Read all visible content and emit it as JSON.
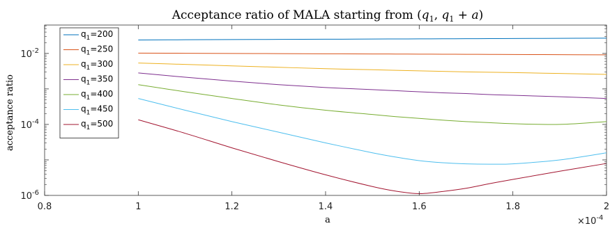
{
  "chart_data": {
    "type": "line",
    "title": "Acceptance ratio of MALA starting from (q₁, q₁ + a)",
    "xlabel": "a",
    "ylabel": "acceptance ratio",
    "x_multiplier_label": "×10⁻⁴",
    "xlim": [
      0.8,
      2.0
    ],
    "ylim_log10": [
      -6,
      -1.2
    ],
    "y_scale": "log",
    "x_ticks": [
      {
        "value": 0.8,
        "label": "0.8"
      },
      {
        "value": 1.0,
        "label": "1"
      },
      {
        "value": 1.2,
        "label": "1.2"
      },
      {
        "value": 1.4,
        "label": "1.4"
      },
      {
        "value": 1.6,
        "label": "1.6"
      },
      {
        "value": 1.8,
        "label": "1.8"
      },
      {
        "value": 2.0,
        "label": "2"
      }
    ],
    "y_ticks": [
      {
        "log10": -6,
        "base": "10",
        "exp": "-6"
      },
      {
        "log10": -4,
        "base": "10",
        "exp": "-4"
      },
      {
        "log10": -2,
        "base": "10",
        "exp": "-2"
      }
    ],
    "grid": false,
    "legend_position": "top-left",
    "x": [
      1.0,
      1.1,
      1.2,
      1.3,
      1.4,
      1.5,
      1.55,
      1.6,
      1.65,
      1.7,
      1.75,
      1.8,
      1.9,
      2.0
    ],
    "series": [
      {
        "name": "q_1=200",
        "legend_pre": "q",
        "legend_sub": "1",
        "legend_post": "=200",
        "color": "#0072BD",
        "log10_values": [
          -1.62,
          -1.615,
          -1.61,
          -1.605,
          -1.6,
          -1.595,
          -1.592,
          -1.59,
          -1.587,
          -1.585,
          -1.582,
          -1.58,
          -1.575,
          -1.57
        ]
      },
      {
        "name": "q_1=250",
        "legend_pre": "q",
        "legend_sub": "1",
        "legend_post": "=250",
        "color": "#D95319",
        "log10_values": [
          -1.99,
          -1.995,
          -2.0,
          -2.005,
          -2.01,
          -2.015,
          -2.017,
          -2.02,
          -2.022,
          -2.025,
          -2.027,
          -2.03,
          -2.035,
          -2.04
        ]
      },
      {
        "name": "q_1=300",
        "legend_pre": "q",
        "legend_sub": "1",
        "legend_post": "=300",
        "color": "#EDB120",
        "log10_values": [
          -2.27,
          -2.31,
          -2.35,
          -2.39,
          -2.43,
          -2.46,
          -2.475,
          -2.49,
          -2.505,
          -2.52,
          -2.53,
          -2.54,
          -2.565,
          -2.59
        ]
      },
      {
        "name": "q_1=350",
        "legend_pre": "q",
        "legend_sub": "1",
        "legend_post": "=350",
        "color": "#7E2F8E",
        "log10_values": [
          -2.55,
          -2.67,
          -2.78,
          -2.88,
          -2.96,
          -3.02,
          -3.05,
          -3.08,
          -3.11,
          -3.13,
          -3.16,
          -3.18,
          -3.22,
          -3.27
        ]
      },
      {
        "name": "q_1=400",
        "legend_pre": "q",
        "legend_sub": "1",
        "legend_post": "=400",
        "color": "#77AC30",
        "log10_values": [
          -2.88,
          -3.08,
          -3.27,
          -3.45,
          -3.6,
          -3.72,
          -3.78,
          -3.83,
          -3.88,
          -3.92,
          -3.95,
          -3.98,
          -4.0,
          -3.92
        ]
      },
      {
        "name": "q_1=450",
        "legend_pre": "q",
        "legend_sub": "1",
        "legend_post": "=450",
        "color": "#4DBEEE",
        "log10_values": [
          -3.27,
          -3.6,
          -3.92,
          -4.22,
          -4.52,
          -4.8,
          -4.92,
          -5.02,
          -5.08,
          -5.11,
          -5.12,
          -5.11,
          -5.0,
          -4.8
        ]
      },
      {
        "name": "q_1=500",
        "legend_pre": "q",
        "legend_sub": "1",
        "legend_post": "=500",
        "color": "#A2142F",
        "log10_values": [
          -3.87,
          -4.25,
          -4.66,
          -5.05,
          -5.42,
          -5.75,
          -5.88,
          -5.95,
          -5.89,
          -5.8,
          -5.67,
          -5.55,
          -5.32,
          -5.1
        ]
      }
    ]
  }
}
